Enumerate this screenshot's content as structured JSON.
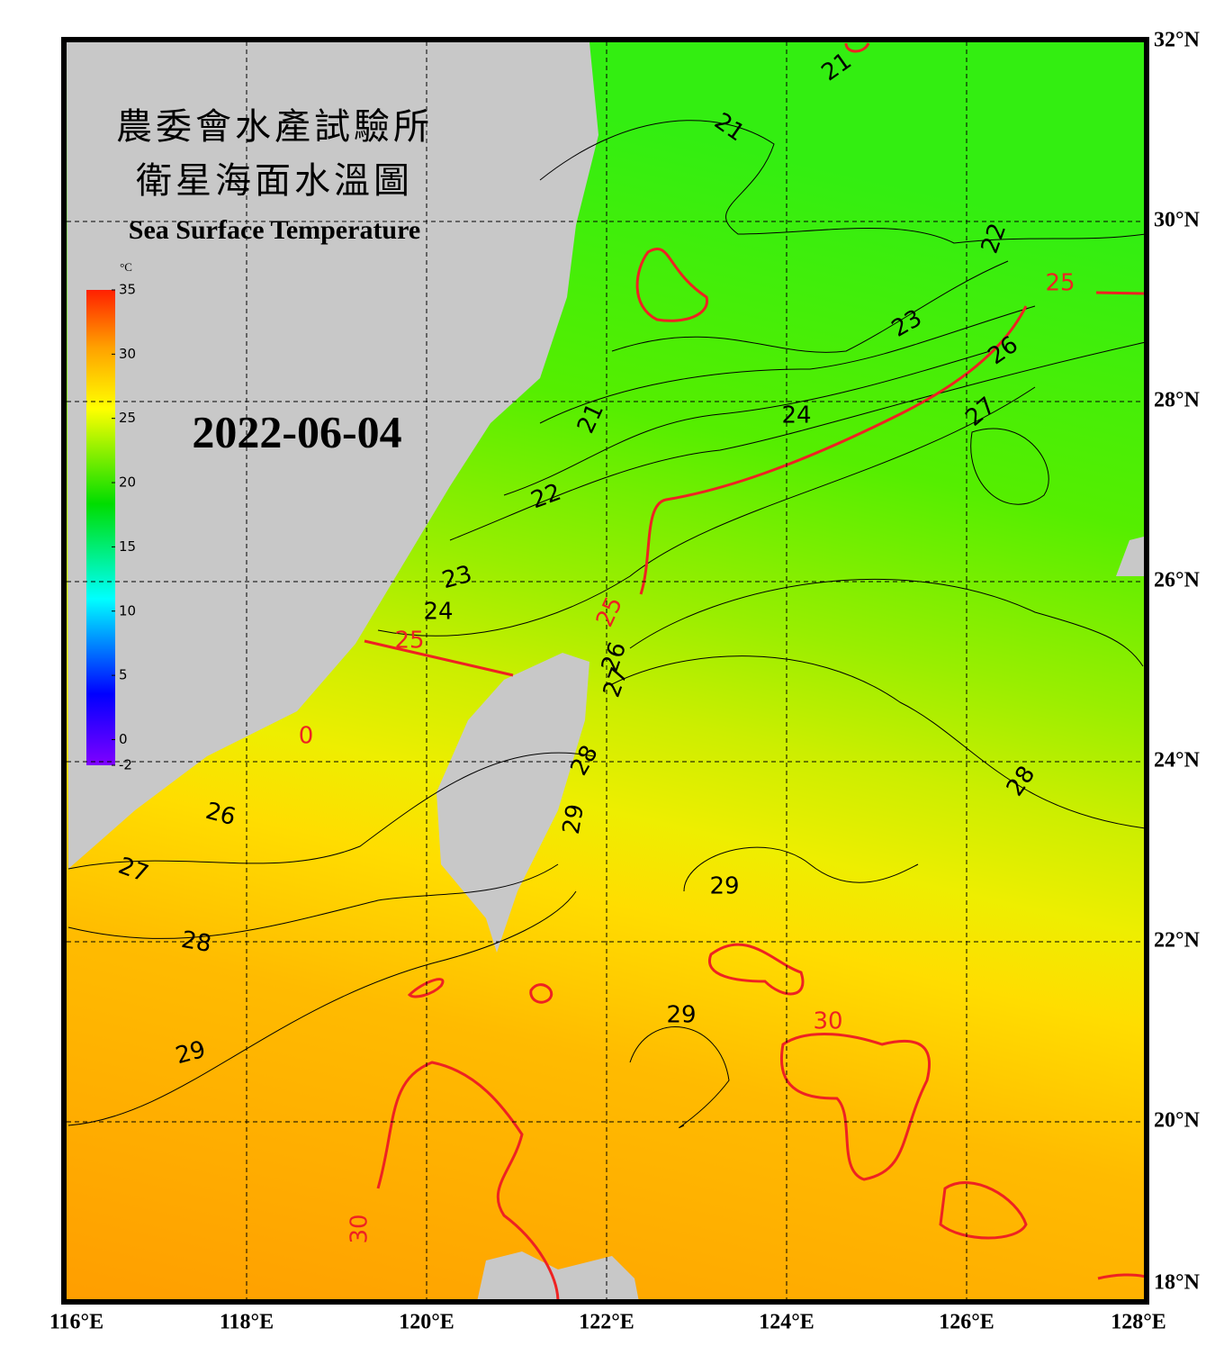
{
  "header": {
    "title_zh_1": "農委會水產試驗所",
    "title_zh_2": "衛星海面水溫圖",
    "title_en": "Sea Surface Temperature",
    "date": "2022-06-04"
  },
  "colorbar": {
    "unit": "°C",
    "range": [
      -2,
      35
    ],
    "ticks": [
      35,
      30,
      25,
      20,
      15,
      10,
      5,
      0,
      -2
    ]
  },
  "map": {
    "lon_range": [
      116,
      128
    ],
    "lat_range": [
      18,
      32
    ],
    "lon_ticks": [
      {
        "value": 116,
        "label": "116°E"
      },
      {
        "value": 118,
        "label": "118°E"
      },
      {
        "value": 120,
        "label": "120°E"
      },
      {
        "value": 122,
        "label": "122°E"
      },
      {
        "value": 124,
        "label": "124°E"
      },
      {
        "value": 126,
        "label": "126°E"
      },
      {
        "value": 128,
        "label": "128°E"
      }
    ],
    "lat_ticks": [
      {
        "value": 32,
        "label": "32°N"
      },
      {
        "value": 30,
        "label": "30°N"
      },
      {
        "value": 28,
        "label": "28°N"
      },
      {
        "value": 26,
        "label": "26°N"
      },
      {
        "value": 24,
        "label": "24°N"
      },
      {
        "value": 22,
        "label": "22°N"
      },
      {
        "value": 20,
        "label": "20°N"
      },
      {
        "value": 18,
        "label": "18°N"
      }
    ]
  },
  "contour_labels": [
    "21",
    "21",
    "22",
    "25",
    "23",
    "26",
    "27",
    "24",
    "21",
    "22",
    "23",
    "24",
    "25",
    "25",
    "26",
    "27",
    "0",
    "28",
    "28",
    "26",
    "29",
    "27",
    "29",
    "28",
    "30",
    "29",
    "29",
    "30"
  ]
}
